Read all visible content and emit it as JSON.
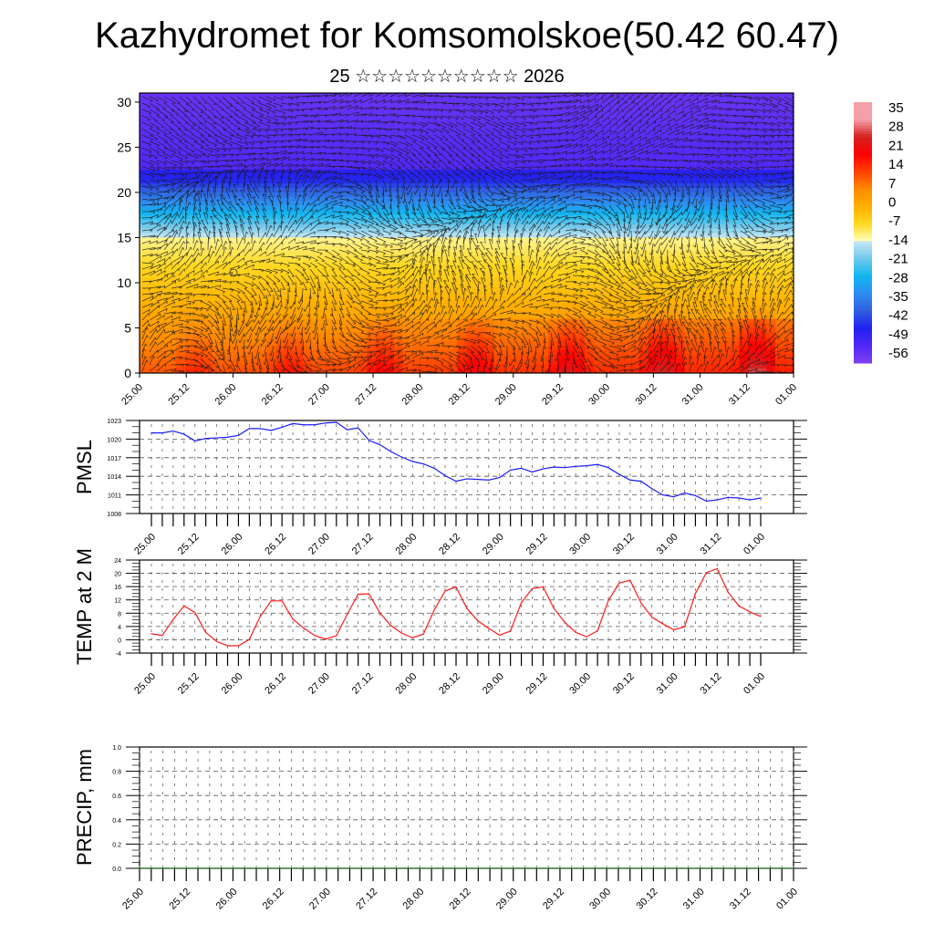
{
  "header": {
    "title": "Kazhydromet for Komsomolskoe(50.42 60.47)",
    "subtitle": "25 ☆☆☆☆☆☆☆☆☆☆ 2026"
  },
  "chart_data": [
    {
      "type": "heatmap",
      "name": "vertical-cross-section",
      "title": "",
      "xlabel": "",
      "ylabel": "",
      "x_tick_labels": [
        "25.00",
        "25.12",
        "26.00",
        "26.12",
        "27.00",
        "27.12",
        "28.00",
        "28.12",
        "29.00",
        "29.12",
        "30.00",
        "30.12",
        "31.00",
        "31.12",
        "01.00"
      ],
      "y_tick_labels": [
        "0",
        "5",
        "10",
        "15",
        "20",
        "25",
        "30"
      ],
      "ylim": [
        0,
        31
      ],
      "colorbar": {
        "labels": [
          "35",
          "28",
          "21",
          "14",
          "7",
          "0",
          "-7",
          "-14",
          "-21",
          "-28",
          "-35",
          "-42",
          "-49",
          "-56"
        ],
        "range": [
          -63,
          42
        ],
        "colors": [
          "#f4a0a8",
          "#d42020",
          "#ff0000",
          "#ff4000",
          "#ff8a00",
          "#ffb000",
          "#ffd820",
          "#ffffc0",
          "#c8e8f4",
          "#70c8ec",
          "#10b8f0",
          "#2e8cf0",
          "#3060e0",
          "#2030f0",
          "#8040f0"
        ]
      },
      "overlay": "wind streamlines/barbs"
    },
    {
      "type": "line",
      "name": "pmsl",
      "ylabel": "PMSL",
      "ylim": [
        1008,
        1023
      ],
      "y_tick_labels": [
        "1008",
        "1011",
        "1014",
        "1017",
        "1020",
        "1023"
      ],
      "x_tick_labels": [
        "25.00",
        "25.12",
        "26.00",
        "26.12",
        "27.00",
        "27.12",
        "28.00",
        "28.12",
        "29.00",
        "29.12",
        "30.00",
        "30.12",
        "31.00",
        "31.12",
        "01.00"
      ],
      "color": "#1a1aff",
      "step_hours": 3,
      "values": [
        1021.0,
        1021.0,
        1021.3,
        1020.8,
        1019.7,
        1020.1,
        1020.2,
        1020.3,
        1020.6,
        1021.7,
        1021.7,
        1021.4,
        1021.9,
        1022.5,
        1022.3,
        1022.3,
        1022.6,
        1022.7,
        1021.5,
        1021.8,
        1019.8,
        1019.1,
        1018.0,
        1017.1,
        1016.4,
        1016.0,
        1015.3,
        1014.1,
        1013.2,
        1013.6,
        1013.5,
        1013.4,
        1013.8,
        1015.0,
        1015.3,
        1014.7,
        1015.2,
        1015.5,
        1015.4,
        1015.6,
        1015.7,
        1015.9,
        1015.4,
        1014.3,
        1013.4,
        1013.2,
        1012.0,
        1011.0,
        1010.7,
        1011.3,
        1010.9,
        1010.0,
        1010.2,
        1010.6,
        1010.5,
        1010.2,
        1010.5
      ]
    },
    {
      "type": "line",
      "name": "temp-2m",
      "ylabel": "TEMP at 2 M",
      "ylim": [
        -4,
        24
      ],
      "y_tick_labels": [
        "-4",
        "0",
        "4",
        "8",
        "12",
        "16",
        "20",
        "24"
      ],
      "x_tick_labels": [
        "25.00",
        "25.12",
        "26.00",
        "26.12",
        "27.00",
        "27.12",
        "28.00",
        "28.12",
        "29.00",
        "29.12",
        "30.00",
        "30.12",
        "31.00",
        "31.12",
        "01.00"
      ],
      "color": "#ff1a1a",
      "step_hours": 3,
      "values": [
        1.8,
        1.3,
        6.1,
        10.2,
        8.2,
        2.2,
        -0.5,
        -1.8,
        -1.8,
        0.1,
        7.0,
        11.7,
        11.7,
        6.2,
        3.5,
        1.3,
        0.2,
        1.2,
        7.7,
        13.7,
        13.8,
        8.1,
        4.3,
        2.0,
        0.6,
        1.7,
        9.0,
        14.7,
        15.9,
        9.4,
        5.7,
        3.4,
        1.4,
        2.6,
        11.2,
        15.4,
        15.9,
        9.4,
        5.2,
        2.2,
        0.9,
        2.7,
        11.8,
        17.1,
        17.9,
        11.1,
        6.8,
        4.8,
        3.0,
        3.9,
        13.9,
        20.2,
        21.4,
        14.3,
        10.2,
        8.4,
        7.0
      ]
    },
    {
      "type": "line",
      "name": "precip",
      "ylabel": "PRECIP, mm",
      "ylim": [
        0,
        1.0
      ],
      "y_tick_labels": [
        "0.0",
        "0.2",
        "0.4",
        "0.6",
        "0.8",
        "1.0"
      ],
      "x_tick_labels": [
        "25.00",
        "25.12",
        "26.00",
        "26.12",
        "27.00",
        "27.12",
        "28.00",
        "28.12",
        "29.00",
        "29.12",
        "30.00",
        "30.12",
        "31.00",
        "31.12",
        "01.00"
      ],
      "color": "#2a7a2a",
      "step_hours": 3,
      "values": [
        0,
        0,
        0,
        0,
        0,
        0,
        0,
        0,
        0,
        0,
        0,
        0,
        0,
        0,
        0,
        0,
        0,
        0,
        0,
        0,
        0,
        0,
        0,
        0,
        0,
        0,
        0,
        0,
        0,
        0,
        0,
        0,
        0,
        0,
        0,
        0,
        0,
        0,
        0,
        0,
        0,
        0,
        0,
        0,
        0,
        0,
        0,
        0,
        0,
        0,
        0,
        0,
        0,
        0,
        0,
        0,
        0
      ]
    }
  ]
}
